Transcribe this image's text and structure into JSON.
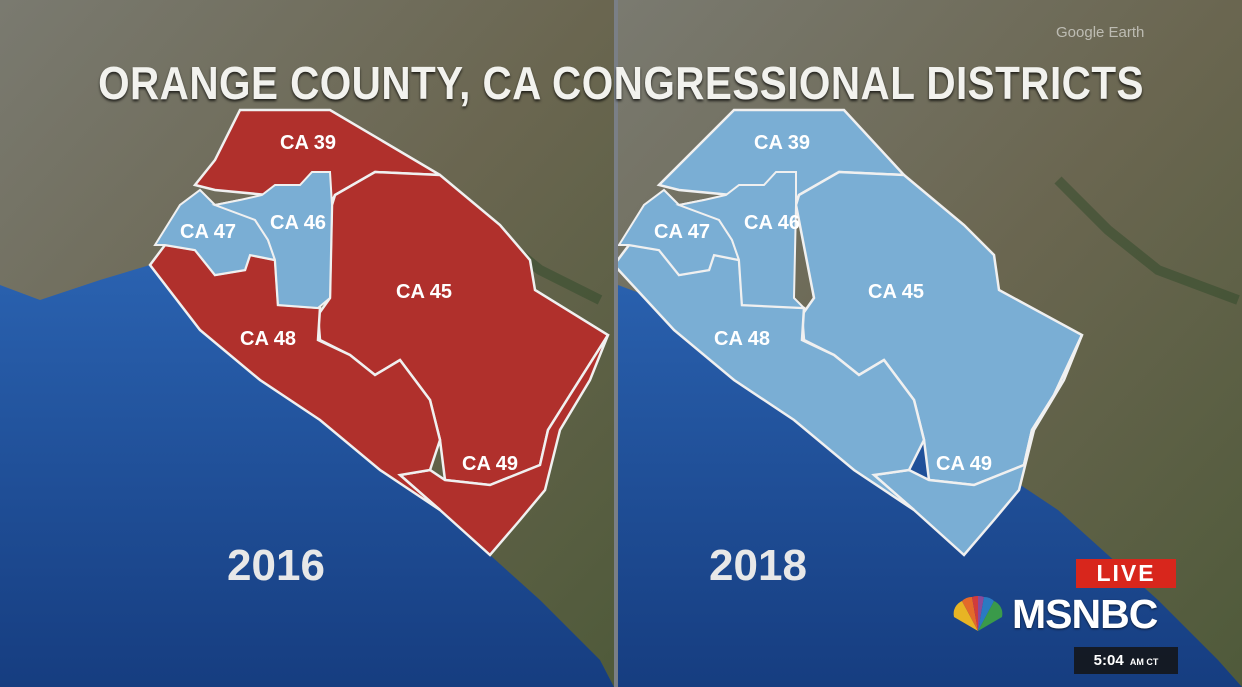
{
  "title": "ORANGE COUNTY, CA CONGRESSIONAL DISTRICTS",
  "attribution": "Google Earth",
  "colors": {
    "republican": "#b0302c",
    "democratic": "#7aaed4",
    "ocean": "#1d4f9a",
    "land": "#6d6a55",
    "live_badge": "#d8261c"
  },
  "maps": [
    {
      "year": "2016",
      "districts": [
        {
          "label": "CA 39",
          "party": "republican"
        },
        {
          "label": "CA 45",
          "party": "republican"
        },
        {
          "label": "CA 46",
          "party": "democratic"
        },
        {
          "label": "CA 47",
          "party": "democratic"
        },
        {
          "label": "CA 48",
          "party": "republican"
        },
        {
          "label": "CA 49",
          "party": "republican"
        }
      ]
    },
    {
      "year": "2018",
      "districts": [
        {
          "label": "CA 39",
          "party": "democratic"
        },
        {
          "label": "CA 45",
          "party": "democratic"
        },
        {
          "label": "CA 46",
          "party": "democratic"
        },
        {
          "label": "CA 47",
          "party": "democratic"
        },
        {
          "label": "CA 48",
          "party": "democratic"
        },
        {
          "label": "CA 49",
          "party": "democratic"
        }
      ]
    }
  ],
  "broadcast": {
    "live_label": "LIVE",
    "network": "MSNBC",
    "time": "5:04",
    "time_zone": "AM CT",
    "logo_icon": "peacock-icon"
  }
}
